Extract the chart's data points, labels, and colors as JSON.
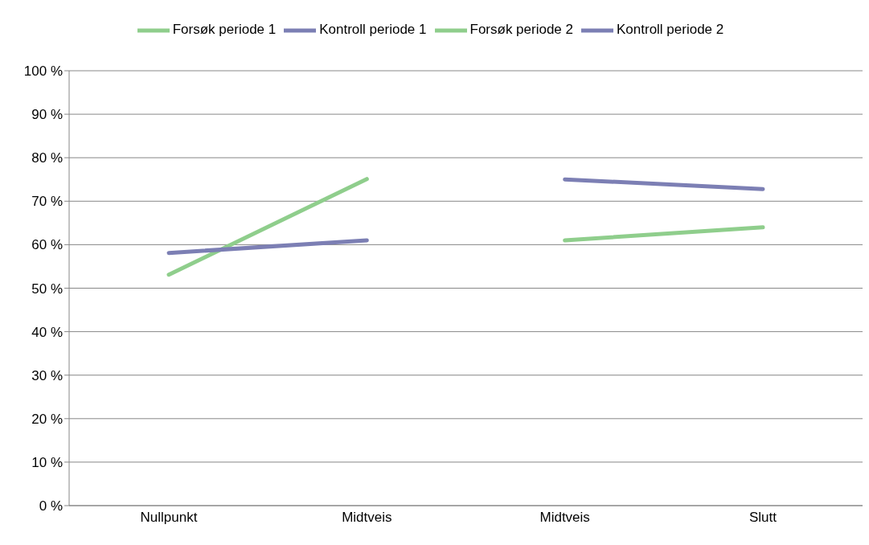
{
  "chart_data": {
    "type": "line",
    "categories": [
      "Nullpunkt",
      "Midtveis",
      "Midtveis",
      "Slutt"
    ],
    "series": [
      {
        "name": "Forsøk periode 1",
        "color": "#8fce8c",
        "values": [
          53.1,
          75.1,
          null,
          null
        ]
      },
      {
        "name": "Kontroll periode 1",
        "color": "#7c7fb4",
        "values": [
          58.1,
          61.0,
          null,
          null
        ]
      },
      {
        "name": "Forsøk periode 2",
        "color": "#8fce8c",
        "values": [
          null,
          null,
          61.0,
          64.0
        ]
      },
      {
        "name": "Kontroll periode 2",
        "color": "#7c7fb4",
        "values": [
          null,
          null,
          75.0,
          72.8
        ]
      }
    ],
    "ylim": [
      0,
      100
    ],
    "yticks": [
      {
        "value": 0,
        "label": "0 %"
      },
      {
        "value": 10,
        "label": "10 %"
      },
      {
        "value": 20,
        "label": "20 %"
      },
      {
        "value": 30,
        "label": "30 %"
      },
      {
        "value": 40,
        "label": "40 %"
      },
      {
        "value": 50,
        "label": "50 %"
      },
      {
        "value": 60,
        "label": "60 %"
      },
      {
        "value": 70,
        "label": "70 %"
      },
      {
        "value": 80,
        "label": "80 %"
      },
      {
        "value": 90,
        "label": "90 %"
      },
      {
        "value": 100,
        "label": "100 %"
      }
    ],
    "grid": "y",
    "legend": "top",
    "marker": "none",
    "line_style": "solid"
  }
}
